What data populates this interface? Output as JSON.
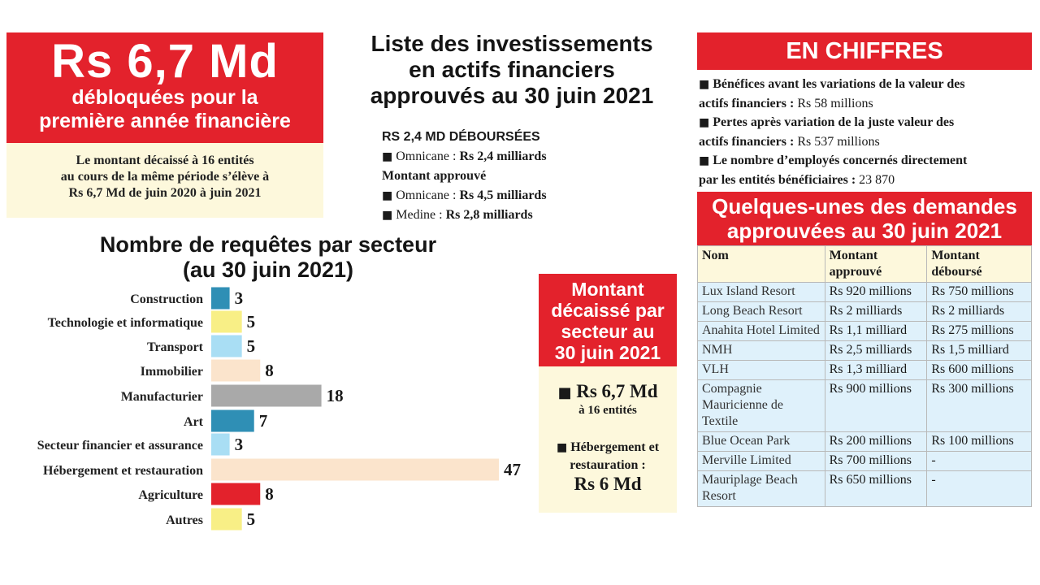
{
  "headline": {
    "big": "Rs 6,7 Md",
    "sub_line1": "débloquées pour la",
    "sub_line2": "première année financière",
    "note_line1": "Le montant décaissé à 16 entités",
    "note_line2": "au cours de la même période s’élève à",
    "note_line3": "Rs 6,7 Md de juin 2020 à juin 2021"
  },
  "investments": {
    "title_line1": "Liste des investissements",
    "title_line2": "en actifs financiers",
    "title_line3": "approuvés au 30 juin 2021",
    "disbursed_heading": "RS 2,4 MD DÉBOURSÉES",
    "bullet": "■",
    "disbursed_name": "Omnicane :",
    "disbursed_value": "Rs 2,4 milliards",
    "approved_heading": "Montant approuvé",
    "approved": [
      {
        "name": "Omnicane :",
        "value": "Rs 4,5 milliards"
      },
      {
        "name": "Medine :",
        "value": "Rs 2,8 milliards"
      }
    ]
  },
  "chart_data": {
    "type": "bar",
    "orientation": "horizontal",
    "title_line1": "Nombre de requêtes par secteur",
    "title_line2": "(au 30 juin 2021)",
    "categories": [
      "Construction",
      "Technologie et informatique",
      "Transport",
      "Immobilier",
      "Manufacturier",
      "Art",
      "Secteur financier et assurance",
      "Hébergement et restauration",
      "Agriculture",
      "Autres"
    ],
    "values": [
      3,
      5,
      5,
      8,
      18,
      7,
      3,
      47,
      8,
      5
    ],
    "colors": [
      "#2f8fb5",
      "#f8ef86",
      "#a9def4",
      "#fbe4cc",
      "#a9a9a9",
      "#2f8fb5",
      "#a9def4",
      "#fbe4cc",
      "#e3222c",
      "#f8ef86"
    ],
    "xlim": [
      0,
      47
    ],
    "legend": "none",
    "grid": false
  },
  "sector_box": {
    "title_line1": "Montant",
    "title_line2": "décaissé par",
    "title_line3": "secteur au",
    "title_line4": "30 juin 2021",
    "bullet": "■",
    "amount": "Rs 6,7 Md",
    "entities": "à 16 entités",
    "heb_line1": "Hébergement et",
    "heb_line2": "restauration :",
    "heb_value": "Rs 6 Md"
  },
  "chiffres": {
    "title": "EN CHIFFRES",
    "bullet": "■",
    "items": [
      {
        "line1": "Bénéfices avant les variations de la valeur des",
        "line2": "actifs financiers :",
        "value": "Rs 58 millions"
      },
      {
        "line1": "Pertes après variation de la juste valeur des",
        "line2": "actifs financiers :",
        "value": "Rs 537 millions"
      },
      {
        "line1": "Le nombre d’employés concernés directement",
        "line2": "par les entités bénéficiaires :",
        "value": "23 870"
      }
    ]
  },
  "demandes": {
    "title_line1": "Quelques-unes des demandes",
    "title_line2": "approuvées au 30 juin 2021",
    "headers": [
      "Nom",
      "Montant approuvé",
      "Montant déboursé"
    ],
    "rows": [
      [
        "Lux Island Resort",
        "Rs 920 millions",
        "Rs 750 millions"
      ],
      [
        "Long Beach Resort",
        "Rs 2 milliards",
        "Rs 2 milliards"
      ],
      [
        "Anahita Hotel Limited",
        "Rs 1,1 milliard",
        "Rs 275 millions"
      ],
      [
        "NMH",
        "Rs 2,5 milliards",
        "Rs 1,5 milliard"
      ],
      [
        "VLH",
        "Rs 1,3 milliard",
        "Rs 600 millions"
      ],
      [
        "Compagnie Mauricienne de Textile",
        "Rs 900 millions",
        "Rs 300 millions"
      ],
      [
        "Blue Ocean Park",
        "Rs 200 millions",
        "Rs 100 millions"
      ],
      [
        "Merville Limited",
        "Rs 700 millions",
        "-"
      ],
      [
        "Mauriplage Beach Resort",
        "Rs 650 millions",
        "-"
      ]
    ]
  }
}
